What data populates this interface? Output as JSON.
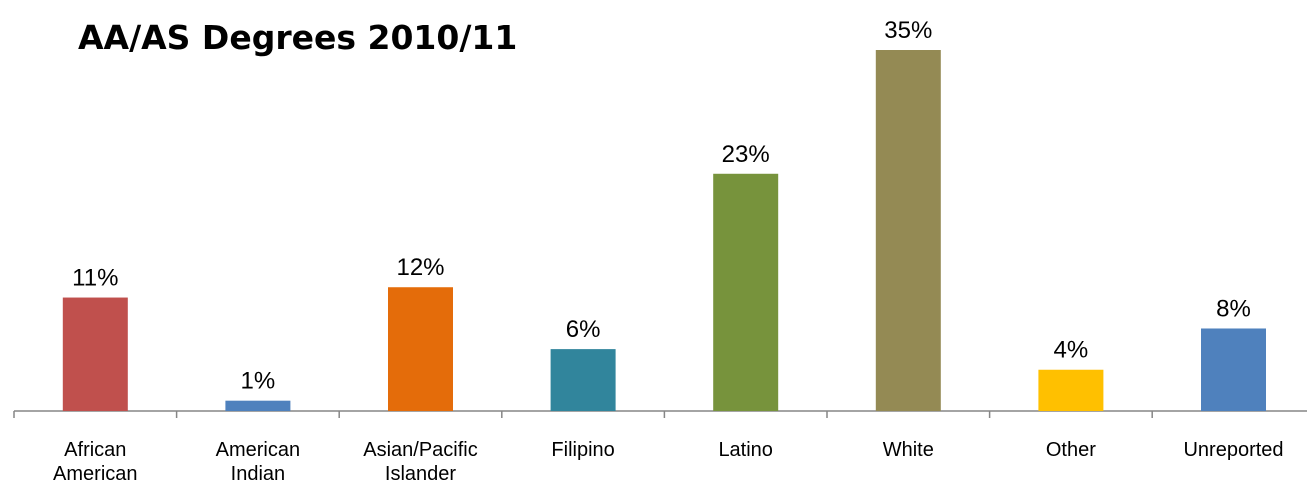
{
  "chart_data": {
    "type": "bar",
    "title": "AA/AS Degrees 2010/11",
    "categories": [
      "African American",
      "American Indian",
      "Asian/Pacific Islander",
      "Filipino",
      "Latino",
      "White",
      "Other",
      "Unreported"
    ],
    "values": [
      11,
      1,
      12,
      6,
      23,
      35,
      4,
      8
    ],
    "value_labels": [
      "11%",
      "1%",
      "12%",
      "6%",
      "23%",
      "35%",
      "4%",
      "8%"
    ],
    "colors": [
      "#c0504d",
      "#4f81bd",
      "#e46c0a",
      "#31859c",
      "#77933c",
      "#948a54",
      "#ffc000",
      "#4f81bd"
    ]
  }
}
